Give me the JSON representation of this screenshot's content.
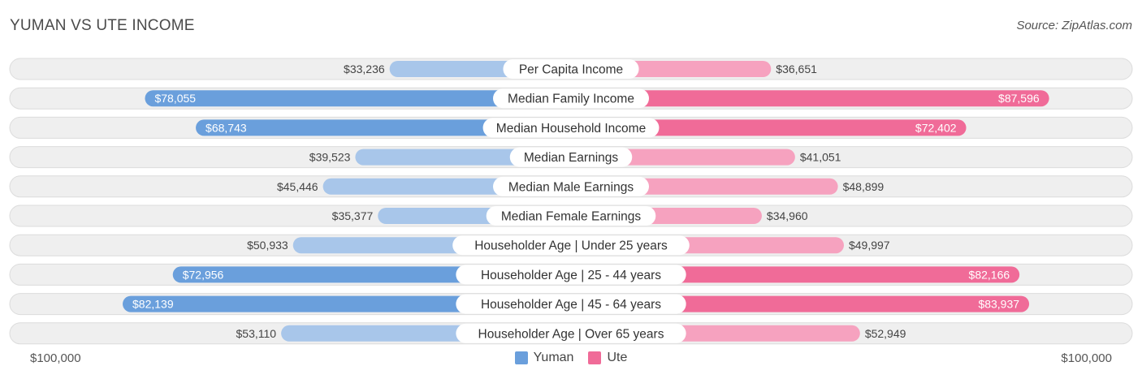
{
  "title": "YUMAN VS UTE INCOME",
  "source": "Source: ZipAtlas.com",
  "axis_left_label": "$100,000",
  "axis_right_label": "$100,000",
  "colors": {
    "left_light": "#a8c6ea",
    "left_dark": "#6a9fdc",
    "right_light": "#f6a2bf",
    "right_dark": "#f06b98",
    "row_bg": "#efefef"
  },
  "legend": {
    "left": {
      "label": "Yuman",
      "color": "#6a9fdc"
    },
    "right": {
      "label": "Ute",
      "color": "#f06b98"
    }
  },
  "chart_data": {
    "type": "bar",
    "orientation": "diverging-horizontal",
    "max": 100000,
    "categories": [
      "Per Capita Income",
      "Median Family Income",
      "Median Household Income",
      "Median Earnings",
      "Median Male Earnings",
      "Median Female Earnings",
      "Householder Age | Under 25 years",
      "Householder Age | 25 - 44 years",
      "Householder Age | 45 - 64 years",
      "Householder Age | Over 65 years"
    ],
    "series": [
      {
        "name": "Yuman",
        "values": [
          33236,
          78055,
          68743,
          39523,
          45446,
          35377,
          50933,
          72956,
          82139,
          53110
        ],
        "labels": [
          "$33,236",
          "$78,055",
          "$68,743",
          "$39,523",
          "$45,446",
          "$35,377",
          "$50,933",
          "$72,956",
          "$82,139",
          "$53,110"
        ]
      },
      {
        "name": "Ute",
        "values": [
          36651,
          87596,
          72402,
          41051,
          48899,
          34960,
          49997,
          82166,
          83937,
          52949
        ],
        "labels": [
          "$36,651",
          "$87,596",
          "$72,402",
          "$41,051",
          "$48,899",
          "$34,960",
          "$49,997",
          "$82,166",
          "$83,937",
          "$52,949"
        ]
      }
    ]
  }
}
